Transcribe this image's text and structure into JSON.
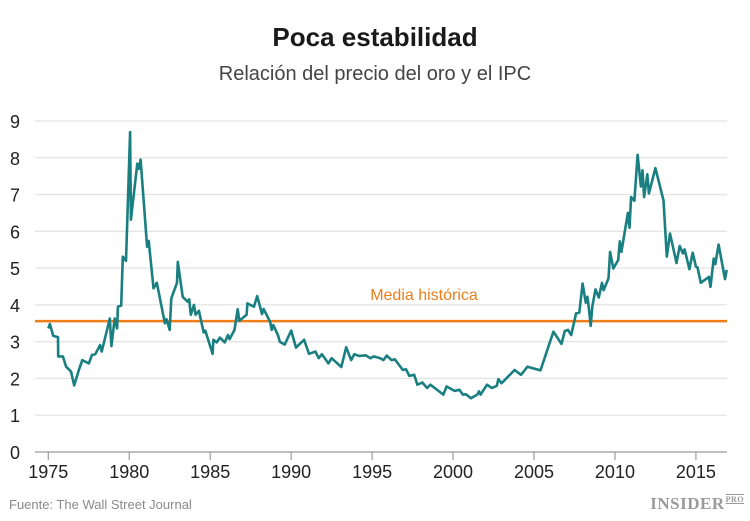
{
  "chart_data": {
    "type": "line",
    "title": "Poca estabilidad",
    "subtitle": "Relación del precio del oro y el IPC",
    "xlabel": "",
    "ylabel": "",
    "xlim": [
      1974.2,
      2016.9
    ],
    "ylim": [
      0,
      9
    ],
    "grid": true,
    "x_ticks": [
      "1975",
      "1980",
      "1985",
      "1990",
      "1995",
      "2000",
      "2005",
      "2010",
      "2015"
    ],
    "y_ticks": [
      "0",
      "1",
      "2",
      "3",
      "4",
      "5",
      "6",
      "7",
      "8",
      "9"
    ],
    "colors": {
      "series": "#1a7f80",
      "reference": "#ee7d1a",
      "grid": "#e4e4e4"
    },
    "reference_line": {
      "label": "Media histórica",
      "value": 3.56
    },
    "series": [
      {
        "values": [
          [
            1975.0,
            3.36
          ],
          [
            1975.1,
            3.48
          ],
          [
            1975.3,
            3.16
          ],
          [
            1975.6,
            3.12
          ],
          [
            1975.61,
            2.6
          ],
          [
            1975.9,
            2.6
          ],
          [
            1976.1,
            2.32
          ],
          [
            1976.4,
            2.19
          ],
          [
            1976.6,
            1.81
          ],
          [
            1976.9,
            2.25
          ],
          [
            1977.1,
            2.5
          ],
          [
            1977.5,
            2.41
          ],
          [
            1977.7,
            2.64
          ],
          [
            1977.9,
            2.66
          ],
          [
            1978.2,
            2.91
          ],
          [
            1978.3,
            2.73
          ],
          [
            1978.8,
            3.63
          ],
          [
            1978.9,
            2.88
          ],
          [
            1979.1,
            3.63
          ],
          [
            1979.25,
            3.36
          ],
          [
            1979.3,
            3.95
          ],
          [
            1979.5,
            3.98
          ],
          [
            1979.6,
            5.31
          ],
          [
            1979.8,
            5.2
          ],
          [
            1980.05,
            8.7
          ],
          [
            1980.1,
            6.32
          ],
          [
            1980.5,
            7.84
          ],
          [
            1980.6,
            7.7
          ],
          [
            1980.7,
            7.95
          ],
          [
            1981.1,
            5.58
          ],
          [
            1981.2,
            5.74
          ],
          [
            1981.5,
            4.45
          ],
          [
            1981.7,
            4.6
          ],
          [
            1982.2,
            3.5
          ],
          [
            1982.3,
            3.61
          ],
          [
            1982.5,
            3.32
          ],
          [
            1982.6,
            4.18
          ],
          [
            1982.95,
            4.6
          ],
          [
            1983.0,
            5.17
          ],
          [
            1983.3,
            4.22
          ],
          [
            1983.6,
            4.09
          ],
          [
            1983.7,
            4.15
          ],
          [
            1983.8,
            3.73
          ],
          [
            1984.0,
            4.0
          ],
          [
            1984.1,
            3.73
          ],
          [
            1984.3,
            3.84
          ],
          [
            1984.6,
            3.25
          ],
          [
            1984.7,
            3.3
          ],
          [
            1985.15,
            2.67
          ],
          [
            1985.2,
            3.05
          ],
          [
            1985.4,
            2.98
          ],
          [
            1985.6,
            3.11
          ],
          [
            1985.9,
            2.98
          ],
          [
            1986.1,
            3.18
          ],
          [
            1986.2,
            3.07
          ],
          [
            1986.5,
            3.32
          ],
          [
            1986.7,
            3.88
          ],
          [
            1986.8,
            3.57
          ],
          [
            1987.25,
            3.73
          ],
          [
            1987.3,
            4.04
          ],
          [
            1987.7,
            3.95
          ],
          [
            1987.9,
            4.24
          ],
          [
            1988.2,
            3.75
          ],
          [
            1988.3,
            3.89
          ],
          [
            1988.7,
            3.54
          ],
          [
            1988.8,
            3.32
          ],
          [
            1988.9,
            3.45
          ],
          [
            1989.2,
            3.16
          ],
          [
            1989.3,
            3.0
          ],
          [
            1989.6,
            2.92
          ],
          [
            1990.0,
            3.3
          ],
          [
            1990.3,
            2.84
          ],
          [
            1990.8,
            3.05
          ],
          [
            1991.1,
            2.67
          ],
          [
            1991.5,
            2.73
          ],
          [
            1991.7,
            2.55
          ],
          [
            1991.9,
            2.66
          ],
          [
            1992.3,
            2.41
          ],
          [
            1992.5,
            2.55
          ],
          [
            1993.1,
            2.31
          ],
          [
            1993.4,
            2.85
          ],
          [
            1993.7,
            2.5
          ],
          [
            1993.9,
            2.66
          ],
          [
            1994.2,
            2.61
          ],
          [
            1994.6,
            2.63
          ],
          [
            1994.9,
            2.55
          ],
          [
            1995.1,
            2.6
          ],
          [
            1995.5,
            2.55
          ],
          [
            1995.7,
            2.5
          ],
          [
            1995.9,
            2.62
          ],
          [
            1996.2,
            2.5
          ],
          [
            1996.4,
            2.52
          ],
          [
            1996.9,
            2.23
          ],
          [
            1997.1,
            2.25
          ],
          [
            1997.3,
            2.07
          ],
          [
            1997.6,
            2.1
          ],
          [
            1997.8,
            1.83
          ],
          [
            1998.1,
            1.89
          ],
          [
            1998.4,
            1.74
          ],
          [
            1998.6,
            1.83
          ],
          [
            1999.4,
            1.56
          ],
          [
            1999.6,
            1.78
          ],
          [
            2000.1,
            1.66
          ],
          [
            2000.4,
            1.69
          ],
          [
            2000.6,
            1.56
          ],
          [
            2000.8,
            1.57
          ],
          [
            2001.1,
            1.46
          ],
          [
            2001.5,
            1.56
          ],
          [
            2001.6,
            1.65
          ],
          [
            2001.7,
            1.56
          ],
          [
            2002.1,
            1.83
          ],
          [
            2002.4,
            1.74
          ],
          [
            2002.7,
            1.8
          ],
          [
            2002.8,
            1.98
          ],
          [
            2003.0,
            1.87
          ],
          [
            2003.8,
            2.23
          ],
          [
            2004.2,
            2.1
          ],
          [
            2004.6,
            2.32
          ],
          [
            2005.4,
            2.22
          ],
          [
            2006.2,
            3.27
          ],
          [
            2006.7,
            2.94
          ],
          [
            2006.9,
            3.29
          ],
          [
            2007.1,
            3.32
          ],
          [
            2007.3,
            3.18
          ],
          [
            2007.6,
            3.77
          ],
          [
            2007.8,
            3.79
          ],
          [
            2008.0,
            4.58
          ],
          [
            2008.2,
            4.06
          ],
          [
            2008.3,
            4.22
          ],
          [
            2008.4,
            3.88
          ],
          [
            2008.5,
            3.43
          ],
          [
            2008.6,
            3.95
          ],
          [
            2008.8,
            4.42
          ],
          [
            2009.0,
            4.2
          ],
          [
            2009.2,
            4.6
          ],
          [
            2009.3,
            4.4
          ],
          [
            2009.6,
            4.72
          ],
          [
            2009.7,
            5.44
          ],
          [
            2009.9,
            4.99
          ],
          [
            2010.2,
            5.22
          ],
          [
            2010.3,
            5.73
          ],
          [
            2010.4,
            5.44
          ],
          [
            2010.8,
            6.5
          ],
          [
            2010.9,
            6.1
          ],
          [
            2011.0,
            6.93
          ],
          [
            2011.2,
            6.83
          ],
          [
            2011.4,
            8.08
          ],
          [
            2011.6,
            7.22
          ],
          [
            2011.7,
            7.66
          ],
          [
            2011.8,
            6.93
          ],
          [
            2012.0,
            7.55
          ],
          [
            2012.1,
            7.03
          ],
          [
            2012.5,
            7.72
          ],
          [
            2013.0,
            6.84
          ],
          [
            2013.2,
            5.31
          ],
          [
            2013.4,
            5.94
          ],
          [
            2013.8,
            5.14
          ],
          [
            2014.0,
            5.6
          ],
          [
            2014.2,
            5.4
          ],
          [
            2014.3,
            5.51
          ],
          [
            2014.6,
            4.97
          ],
          [
            2014.8,
            5.42
          ],
          [
            2015.0,
            5.04
          ],
          [
            2015.1,
            5.02
          ],
          [
            2015.3,
            4.6
          ],
          [
            2015.8,
            4.76
          ],
          [
            2015.9,
            4.49
          ],
          [
            2016.1,
            5.26
          ],
          [
            2016.2,
            5.11
          ],
          [
            2016.4,
            5.64
          ],
          [
            2016.8,
            4.7
          ],
          [
            2016.9,
            4.95
          ]
        ]
      }
    ]
  },
  "footer": {
    "source": "Fuente: The Wall Street Journal",
    "logo": "INSIDER",
    "logo_sup": "PRO"
  }
}
